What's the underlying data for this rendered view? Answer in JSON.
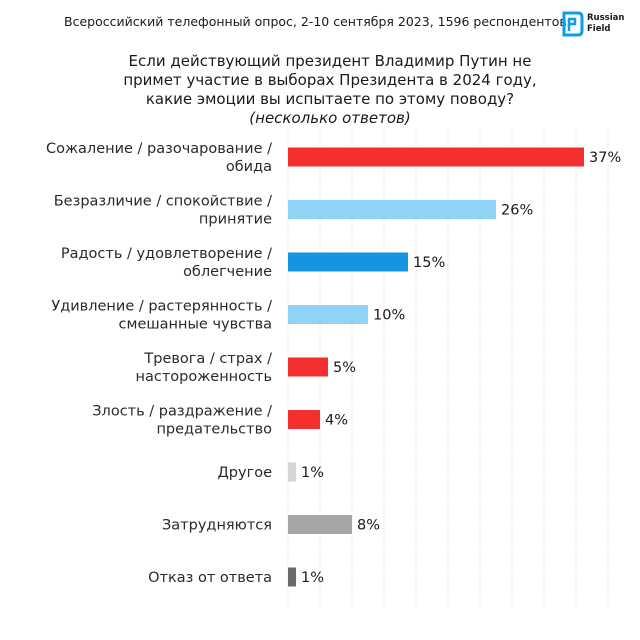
{
  "header": {
    "survey": "Всероссийский телефонный опрос, 2-10 сентября 2023, 1596 респондентов",
    "logo": {
      "line1": "Russian",
      "line2": "Field",
      "color": "#0a9ee6"
    }
  },
  "title_lines": [
    "Если действующий президент Владимир Путин не",
    "примет участие в выборах Президента в 2024 году,",
    "какие эмоции вы испытаете по этому поводу?"
  ],
  "subtitle": "(несколько ответов)",
  "chart_data": {
    "type": "bar",
    "orientation": "horizontal",
    "categories": [
      [
        "Сожаление / разочарование /",
        "обида"
      ],
      [
        "Безразличие / спокойствие /",
        "принятие"
      ],
      [
        "Радость / удовлетворение /",
        "облегчение"
      ],
      [
        "Удивление / растерянность /",
        "смешанные чувства"
      ],
      [
        "Тревога / страх /",
        "настороженность"
      ],
      [
        "Злость / раздражение /",
        "предательство"
      ],
      [
        "Другое"
      ],
      [
        "Затрудняются"
      ],
      [
        "Отказ от ответа"
      ]
    ],
    "values": [
      37,
      26,
      15,
      10,
      5,
      4,
      1,
      8,
      1
    ],
    "value_labels": [
      "37%",
      "26%",
      "15%",
      "10%",
      "5%",
      "4%",
      "1%",
      "8%",
      "1%"
    ],
    "colors": [
      "#f52f2f",
      "#8fd3f7",
      "#1594e0",
      "#8fd3f7",
      "#f52f2f",
      "#f52f2f",
      "#d6d6d6",
      "#a6a6a6",
      "#6b6b6b"
    ],
    "xlim": [
      0,
      40
    ],
    "grid": true,
    "grid_color": "#d9d9d9"
  }
}
